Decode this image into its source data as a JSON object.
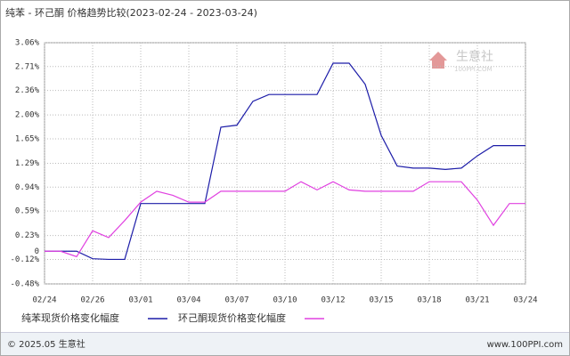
{
  "chart_data": {
    "type": "line",
    "title": "纯苯 - 环己酮 价格趋势比较(2023-02-24 - 2023-03-24)",
    "categories": [
      "02/24",
      null,
      null,
      "02/26",
      null,
      null,
      "03/01",
      null,
      null,
      "03/04",
      null,
      null,
      "03/07",
      null,
      null,
      "03/10",
      null,
      null,
      "03/12",
      null,
      null,
      "03/15",
      null,
      null,
      "03/18",
      null,
      null,
      "03/21",
      null,
      null,
      "03/24"
    ],
    "series": [
      {
        "name": "纯苯现货价格变化幅度",
        "color": "#1c1ca8",
        "values": [
          0,
          0,
          0,
          -0.11,
          -0.12,
          -0.12,
          0.7,
          0.7,
          0.7,
          0.7,
          0.7,
          1.82,
          1.85,
          2.2,
          2.3,
          2.3,
          2.3,
          2.3,
          2.76,
          2.76,
          2.45,
          1.7,
          1.25,
          1.22,
          1.22,
          1.2,
          1.22,
          1.4,
          1.55,
          1.55,
          1.55
        ]
      },
      {
        "name": "环己酮现货价格变化幅度",
        "color": "#e040e0",
        "values": [
          0,
          0,
          -0.08,
          0.3,
          0.2,
          0.45,
          0.72,
          0.88,
          0.82,
          0.72,
          0.72,
          0.88,
          0.88,
          0.88,
          0.88,
          0.88,
          1.02,
          0.9,
          1.02,
          0.9,
          0.88,
          0.88,
          0.88,
          0.88,
          1.02,
          1.02,
          1.02,
          0.75,
          0.38,
          0.7,
          0.7
        ]
      }
    ],
    "ylim": [
      -0.48,
      3.06
    ],
    "yticks": [
      {
        "value": 3.06,
        "label": "3.06%"
      },
      {
        "value": 2.71,
        "label": "2.71%"
      },
      {
        "value": 2.36,
        "label": "2.36%"
      },
      {
        "value": 2.0,
        "label": "2.00%"
      },
      {
        "value": 1.65,
        "label": "1.65%"
      },
      {
        "value": 1.29,
        "label": "1.29%"
      },
      {
        "value": 0.94,
        "label": "0.94%"
      },
      {
        "value": 0.59,
        "label": "0.59%"
      },
      {
        "value": 0.23,
        "label": "0.23%"
      },
      0,
      {
        "value": -0.12,
        "label": "-0.12%"
      },
      {
        "value": -0.48,
        "label": "-0.48%"
      }
    ],
    "grid": true,
    "watermark": {
      "name": "生意社",
      "site": "100PPI.COM"
    },
    "footer": {
      "left": "© 2025.05 生意社",
      "right": "www.100PPI.com"
    }
  }
}
